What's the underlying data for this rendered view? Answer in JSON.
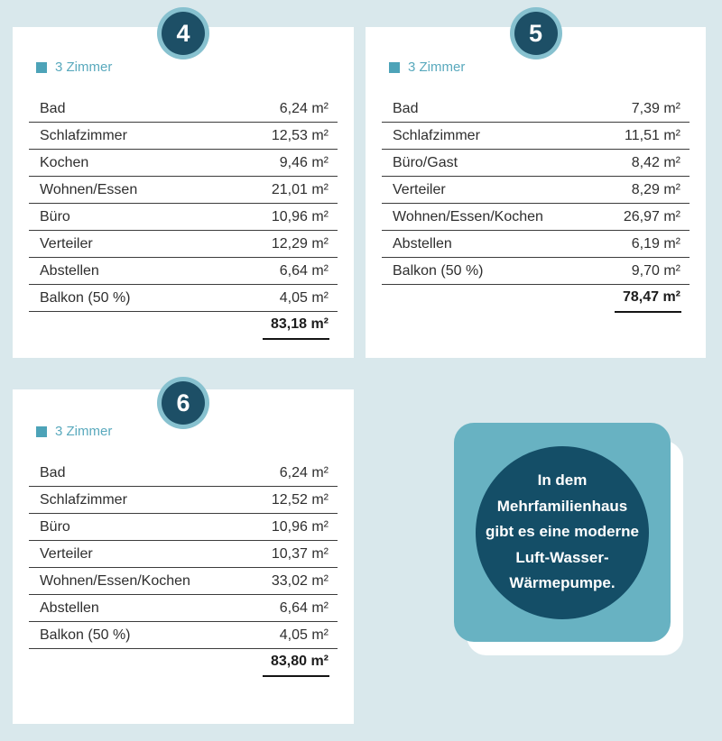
{
  "colors": {
    "page_background": "#d9e8ec",
    "card_background": "#ffffff",
    "accent_teal": "#59a9bd",
    "badge_ring": "#87c1cf",
    "badge_circle": "#1d4f66",
    "callout_square": "#68b2c2",
    "callout_circle": "#144e67",
    "table_text": "#2e2e2e"
  },
  "cards": [
    {
      "number": "4",
      "category": "3 Zimmer",
      "rows": [
        {
          "label": "Bad",
          "value": "6,24 m²"
        },
        {
          "label": "Schlafzimmer",
          "value": "12,53 m²"
        },
        {
          "label": "Kochen",
          "value": "9,46 m²"
        },
        {
          "label": "Wohnen/Essen",
          "value": "21,01 m²"
        },
        {
          "label": "Büro",
          "value": "10,96 m²"
        },
        {
          "label": "Verteiler",
          "value": "12,29 m²"
        },
        {
          "label": "Abstellen",
          "value": "6,64 m²"
        },
        {
          "label": "Balkon (50 %)",
          "value": "4,05 m²"
        }
      ],
      "total": "83,18 m²"
    },
    {
      "number": "5",
      "category": "3 Zimmer",
      "rows": [
        {
          "label": "Bad",
          "value": "7,39 m²"
        },
        {
          "label": "Schlafzimmer",
          "value": "11,51 m²"
        },
        {
          "label": "Büro/Gast",
          "value": "8,42 m²"
        },
        {
          "label": "Verteiler",
          "value": "8,29 m²"
        },
        {
          "label": "Wohnen/Essen/Kochen",
          "value": "26,97 m²"
        },
        {
          "label": "Abstellen",
          "value": "6,19 m²"
        },
        {
          "label": "Balkon (50 %)",
          "value": "9,70 m²"
        }
      ],
      "total": "78,47 m²"
    },
    {
      "number": "6",
      "category": "3 Zimmer",
      "rows": [
        {
          "label": "Bad",
          "value": "6,24 m²"
        },
        {
          "label": "Schlafzimmer",
          "value": "12,52 m²"
        },
        {
          "label": "Büro",
          "value": "10,96 m²"
        },
        {
          "label": "Verteiler",
          "value": "10,37 m²"
        },
        {
          "label": "Wohnen/Essen/Kochen",
          "value": "33,02 m²"
        },
        {
          "label": "Abstellen",
          "value": "6,64 m²"
        },
        {
          "label": "Balkon (50 %)",
          "value": "4,05 m²"
        }
      ],
      "total": "83,80 m²"
    }
  ],
  "callout": {
    "lines": [
      "In dem",
      "Mehrfamilienhaus",
      "gibt es eine moderne",
      "Luft-Wasser-",
      "Wärmepumpe."
    ]
  }
}
